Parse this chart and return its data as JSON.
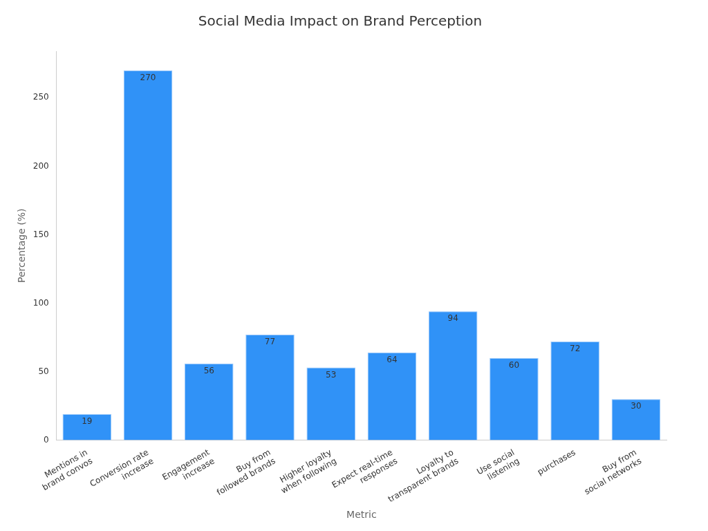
{
  "chart_data": {
    "type": "bar",
    "title": "Social Media Impact on Brand Perception",
    "xlabel": "Metric",
    "ylabel": "Percentage (%)",
    "categories": [
      "Mentions in\nbrand convos",
      "Conversion rate\nincrease",
      "Engagement\nincrease",
      "Buy from\nfollowed brands",
      "Higher loyalty\nwhen following",
      "Expect real-time\nresponses",
      "Loyalty to\ntransparent brands",
      "Use social\nlistening",
      "purchases",
      "Buy from\nsocial networks"
    ],
    "values": [
      19,
      270,
      56,
      77,
      53,
      64,
      94,
      60,
      72,
      30
    ],
    "color": "#3092f7",
    "ylim": [
      0,
      284
    ],
    "yticks": [
      0,
      50,
      100,
      150,
      200,
      250
    ],
    "grid": false,
    "data_labels": true
  }
}
